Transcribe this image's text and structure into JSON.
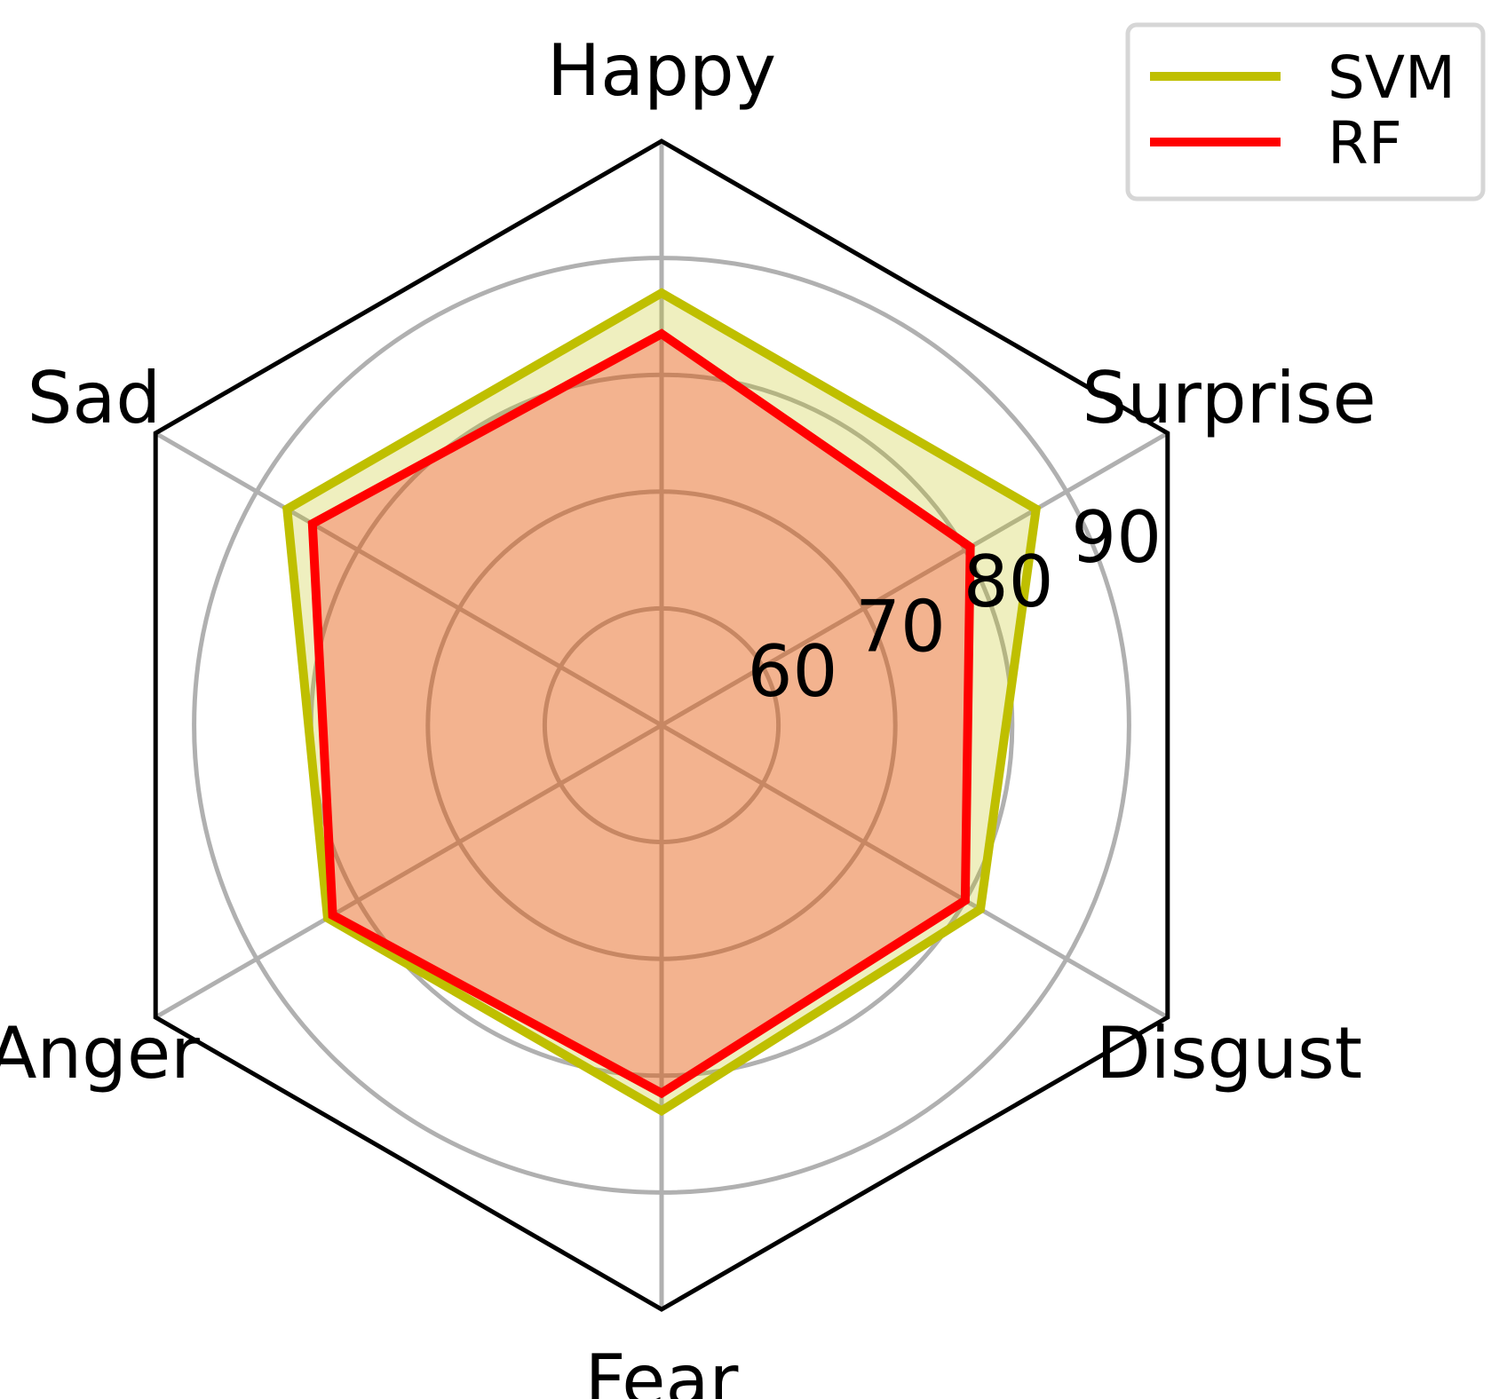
{
  "chart_data": {
    "type": "radar",
    "axes": [
      "Happy",
      "Surprise",
      "Disgust",
      "Fear",
      "Anger",
      "Sad"
    ],
    "radial_ticks": [
      60,
      70,
      80,
      90
    ],
    "rlim": [
      50,
      100
    ],
    "grid": true,
    "legend_position": "top-right",
    "series": [
      {
        "name": "SVM",
        "color": "#bfbf00",
        "fill": "#bfbf00",
        "values": [
          87,
          87,
          81.5,
          83,
          83,
          87
        ]
      },
      {
        "name": "RF",
        "color": "#ff0000",
        "fill": "#ff0000",
        "values": [
          83.5,
          80.5,
          80,
          81.5,
          82.5,
          84.5
        ]
      }
    ]
  }
}
